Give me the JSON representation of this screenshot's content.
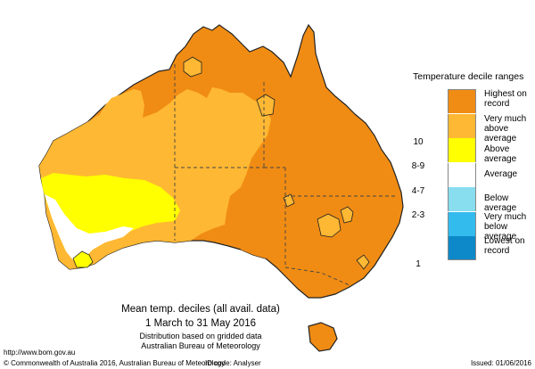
{
  "map": {
    "title": "Mean temp. deciles (all avail. data)",
    "period": "1 March to 31 May 2016",
    "note_line1": "Distribution based on gridded data",
    "note_line2": "Australian Bureau of Meteorology"
  },
  "legend": {
    "title": "Temperature decile ranges",
    "items": [
      {
        "range": "",
        "label": "Highest on record",
        "color": "#f08c14"
      },
      {
        "range": "10",
        "label": "Very much above average",
        "color": "#ffb833"
      },
      {
        "range": "8-9",
        "label": "Above average",
        "color": "#ffff00"
      },
      {
        "range": "4-7",
        "label": "Average",
        "color": "#ffffff"
      },
      {
        "range": "2-3",
        "label": "Below average",
        "color": "#88ddee"
      },
      {
        "range": "",
        "label": "Very much below average",
        "color": "#33bbee"
      },
      {
        "range": "1",
        "label": "Lowest on record",
        "color": "#0d88c8"
      }
    ]
  },
  "footer": {
    "url": "http://www.bom.gov.au",
    "copyright": "© Commonwealth of Australia 2016, Australian Bureau of Meteorology",
    "id_code": "ID code: Analyser",
    "issued": "Issued: 01/06/2016"
  },
  "colors": {
    "record": "#f08c14",
    "very_much_above": "#ffb833",
    "above": "#ffff00",
    "average": "#ffffff",
    "outline": "#222222",
    "border": "#444444"
  }
}
